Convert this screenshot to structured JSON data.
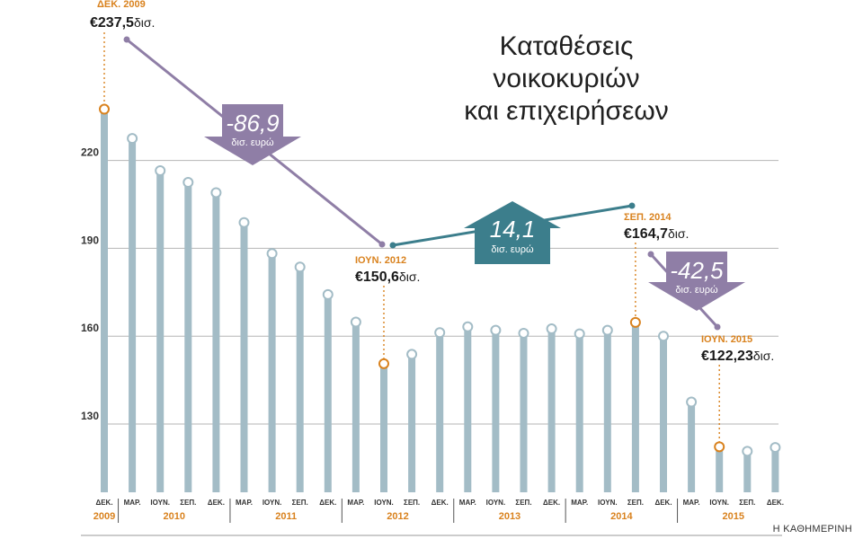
{
  "chart_data": {
    "type": "bar",
    "title": "Καταθέσεις νοικοκυριών και επιχειρήσεων",
    "title_lines": [
      "Καταθέσεις",
      "νοικοκυριών",
      "και επιχειρήσεων"
    ],
    "ylim": [
      115,
      245
    ],
    "yticks": [
      130,
      160,
      190,
      220
    ],
    "categories": [
      "ΔΕΚ.",
      "ΜΑΡ.",
      "ΙΟΥΝ.",
      "ΣΕΠ.",
      "ΔΕΚ.",
      "ΜΑΡ.",
      "ΙΟΥΝ.",
      "ΣΕΠ.",
      "ΔΕΚ.",
      "ΜΑΡ.",
      "ΙΟΥΝ.",
      "ΣΕΠ.",
      "ΔΕΚ.",
      "ΜΑΡ.",
      "ΙΟΥΝ.",
      "ΣΕΠ.",
      "ΔΕΚ.",
      "ΜΑΡ.",
      "ΙΟΥΝ.",
      "ΣΕΠ.",
      "ΔΕΚ.",
      "ΜΑΡ.",
      "ΙΟΥΝ.",
      "ΣΕΠ.",
      "ΔΕΚ."
    ],
    "values": [
      237.5,
      227.5,
      216.5,
      212.5,
      209.0,
      198.8,
      188.2,
      183.6,
      174.2,
      164.8,
      150.6,
      153.8,
      161.2,
      163.2,
      162.0,
      161.0,
      162.5,
      160.8,
      162.0,
      164.7,
      160.0,
      137.5,
      122.23,
      120.7,
      122.0
    ],
    "highlight_indices": [
      0,
      10,
      19,
      22
    ],
    "year_groups": [
      {
        "year": "2009",
        "start": 0,
        "end": 0
      },
      {
        "year": "2010",
        "start": 1,
        "end": 4
      },
      {
        "year": "2011",
        "start": 5,
        "end": 8
      },
      {
        "year": "2012",
        "start": 9,
        "end": 12
      },
      {
        "year": "2013",
        "start": 13,
        "end": 16
      },
      {
        "year": "2014",
        "start": 17,
        "end": 20
      },
      {
        "year": "2015",
        "start": 21,
        "end": 24
      }
    ],
    "annotations": [
      {
        "index": 0,
        "date": "ΔΕΚ. 2009",
        "euro": "€",
        "value": "237,5",
        "unit": "δισ."
      },
      {
        "index": 10,
        "date": "ΙΟΥΝ. 2012",
        "euro": "€",
        "value": "150,6",
        "unit": "δισ."
      },
      {
        "index": 19,
        "date": "ΣΕΠ. 2014",
        "euro": "€",
        "value": "164,7",
        "unit": "δισ."
      },
      {
        "index": 22,
        "date": "ΙΟΥΝ. 2015",
        "euro": "€",
        "value": "122,23",
        "unit": "δισ."
      }
    ],
    "changes": [
      {
        "value": "-86,9",
        "unit": "δισ. ευρώ",
        "direction": "down",
        "color": "#8f7ea6"
      },
      {
        "value": "14,1",
        "unit": "δισ. ευρώ",
        "direction": "up",
        "color": "#3c7e8c"
      },
      {
        "value": "-42,5",
        "unit": "δισ. ευρώ",
        "direction": "down",
        "color": "#8f7ea6"
      }
    ],
    "colors": {
      "bar": "#a3bcc6",
      "highlight": "#d9821e",
      "year_text": "#d9821e",
      "grid": "#b5b5b5"
    }
  },
  "credit": "Η ΚΑΘΗΜΕΡΙΝΗ"
}
